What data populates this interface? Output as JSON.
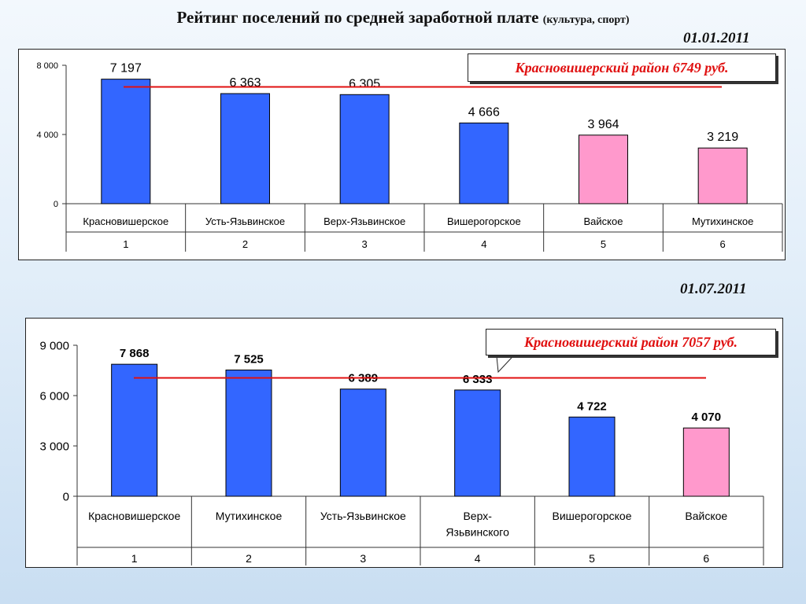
{
  "header": {
    "title": "Рейтинг поселений по средней заработной плате",
    "subtitle": "(культура, спорт)"
  },
  "colors": {
    "blue_bar": "#3366ff",
    "pink_bar": "#ff99cc",
    "average_line": "#e01010",
    "callout_text": "#e01010"
  },
  "chart_data": [
    {
      "type": "bar",
      "date_label": "01.01.2011",
      "callout": "Красновишерский район 6749 руб.",
      "average": 6749,
      "ylim": [
        0,
        8000
      ],
      "yticks": [
        0,
        4000,
        8000
      ],
      "ytick_labels": [
        "0",
        "4 000",
        "8 000"
      ],
      "categories": [
        "Красновишерское",
        "Усть-Язьвинское",
        "Верх-Язьвинское",
        "Вишерогорское",
        "Вайское",
        "Мутихинское"
      ],
      "ranks": [
        "1",
        "2",
        "3",
        "4",
        "5",
        "6"
      ],
      "values": [
        7197,
        6363,
        6305,
        4666,
        3964,
        3219
      ],
      "value_labels": [
        "7 197",
        "6 363",
        "6 305",
        "4 666",
        "3 964",
        "3 219"
      ],
      "bar_colors": [
        "blue",
        "blue",
        "blue",
        "blue",
        "pink",
        "pink"
      ],
      "grid": false
    },
    {
      "type": "bar",
      "date_label": "01.07.2011",
      "callout": "Красновишерский район 7057 руб.",
      "average": 7057,
      "ylim": [
        0,
        9000
      ],
      "yticks": [
        0,
        3000,
        6000,
        9000
      ],
      "ytick_labels": [
        "0",
        "3 000",
        "6 000",
        "9 000"
      ],
      "categories": [
        "Красновишерское",
        "Мутихинское",
        "Усть-Язьвинское",
        "Верх-Язьвинского",
        "Вишерогорское",
        "Вайское"
      ],
      "ranks": [
        "1",
        "2",
        "3",
        "4",
        "5",
        "6"
      ],
      "values": [
        7868,
        7525,
        6389,
        6333,
        4722,
        4070
      ],
      "value_labels": [
        "7 868",
        "7 525",
        "6 389",
        "6 333",
        "4 722",
        "4 070"
      ],
      "bar_colors": [
        "blue",
        "blue",
        "blue",
        "blue",
        "blue",
        "pink"
      ],
      "grid": false
    }
  ]
}
